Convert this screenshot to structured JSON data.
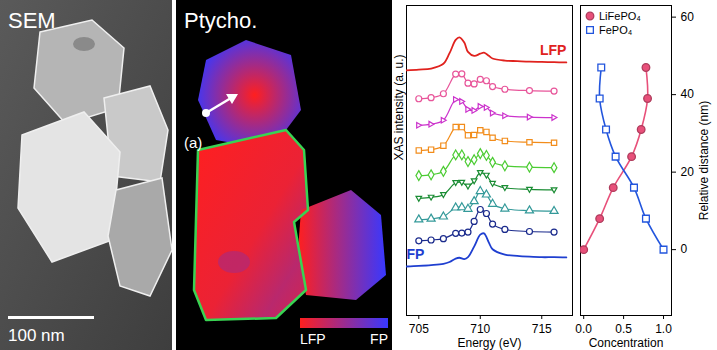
{
  "images": [
    {
      "title": "SEM",
      "scale_bar": "100 nm"
    },
    {
      "title": "Ptycho.",
      "annotation": "(a)",
      "colorbar": {
        "labels": [
          "LFP",
          "FP"
        ],
        "colors": [
          "#ff1f1f",
          "#3838ff"
        ]
      }
    }
  ],
  "chart_data": [
    {
      "type": "line",
      "xlabel": "Energy (eV)",
      "ylabel": "XAS intensity (a. u.)",
      "xlim": [
        704,
        717.5
      ],
      "xticks": [
        705,
        710,
        715
      ],
      "ylim": [
        -1.3,
        10.4
      ],
      "tick_labels": "x",
      "grid": false,
      "series": [
        {
          "name": "LFP",
          "color": "#e0221e",
          "x": [
            704,
            705,
            706,
            707,
            707.5,
            708,
            708.3,
            708.7,
            709,
            709.5,
            710,
            710.3,
            710.7,
            711,
            712,
            713,
            714,
            715,
            716,
            717
          ],
          "values": [
            7.95,
            7.98,
            8.02,
            8.2,
            8.6,
            9.1,
            9.2,
            9.0,
            8.65,
            8.5,
            8.58,
            8.62,
            8.5,
            8.4,
            8.32,
            8.3,
            8.28,
            8.27,
            8.26,
            8.25
          ]
        },
        {
          "color": "#e8559a",
          "marker": "circle",
          "x": [
            705,
            706,
            707,
            708,
            708.5,
            709,
            709.5,
            710,
            710.5,
            711,
            712,
            714,
            716
          ],
          "values": [
            6.88,
            6.92,
            7.07,
            7.81,
            7.82,
            7.47,
            7.44,
            7.61,
            7.56,
            7.34,
            7.24,
            7.19,
            7.17
          ]
        },
        {
          "color": "#cc33cc",
          "marker": "triangle-right",
          "x": [
            705,
            706,
            707,
            708,
            708.5,
            709,
            709.5,
            710,
            710.5,
            711,
            712,
            714,
            716
          ],
          "values": [
            5.88,
            5.92,
            6.07,
            6.85,
            6.78,
            6.48,
            6.44,
            6.59,
            6.55,
            6.34,
            6.24,
            6.19,
            6.17
          ]
        },
        {
          "color": "#f28c1a",
          "marker": "square",
          "x": [
            705,
            706,
            707,
            708,
            708.5,
            709,
            709.5,
            710,
            710.5,
            711,
            712,
            714,
            716
          ],
          "values": [
            4.93,
            4.96,
            5.11,
            5.81,
            5.81,
            5.5,
            5.51,
            5.69,
            5.63,
            5.41,
            5.29,
            5.24,
            5.22
          ]
        },
        {
          "color": "#4ccc33",
          "marker": "diamond",
          "x": [
            705,
            706,
            707,
            708,
            708.5,
            709,
            709.5,
            710,
            710.5,
            711,
            712,
            714,
            716
          ],
          "values": [
            3.98,
            4.01,
            4.14,
            4.76,
            4.76,
            4.51,
            4.58,
            4.81,
            4.74,
            4.48,
            4.35,
            4.3,
            4.28
          ]
        },
        {
          "color": "#1a8c33",
          "marker": "triangle-down",
          "x": [
            705,
            706,
            707,
            708,
            708.5,
            709,
            709.5,
            710,
            710.5,
            711,
            712,
            714,
            716
          ],
          "values": [
            3.12,
            3.16,
            3.26,
            3.71,
            3.72,
            3.58,
            3.78,
            4.09,
            3.99,
            3.68,
            3.52,
            3.46,
            3.44
          ]
        },
        {
          "color": "#339999",
          "marker": "triangle",
          "x": [
            705,
            706,
            707,
            708,
            708.5,
            709,
            709.5,
            710,
            710.5,
            711,
            712,
            714,
            716
          ],
          "values": [
            2.32,
            2.35,
            2.43,
            2.77,
            2.78,
            2.72,
            3.01,
            3.39,
            3.26,
            2.91,
            2.73,
            2.66,
            2.64
          ]
        },
        {
          "color": "#1a2a8c",
          "marker": "circle",
          "x": [
            705,
            706,
            707,
            708,
            708.5,
            709,
            709.5,
            710,
            710.5,
            711,
            712,
            714,
            716
          ],
          "values": [
            1.52,
            1.55,
            1.6,
            1.8,
            1.81,
            1.85,
            2.25,
            2.7,
            2.55,
            2.15,
            1.95,
            1.87,
            1.85
          ]
        },
        {
          "name": "FP",
          "color": "#1f3fd0",
          "x": [
            704,
            705,
            706,
            707,
            707.5,
            708,
            708.3,
            708.7,
            709,
            709.5,
            710,
            710.3,
            710.7,
            711,
            712,
            713,
            714,
            715,
            716,
            717
          ],
          "values": [
            0.55,
            0.57,
            0.6,
            0.65,
            0.72,
            0.85,
            0.88,
            0.83,
            0.9,
            1.3,
            1.75,
            1.8,
            1.45,
            1.2,
            1.0,
            0.95,
            0.92,
            0.9,
            0.9,
            0.89
          ]
        }
      ]
    },
    {
      "type": "line",
      "xlabel": "Concentration",
      "ylabel": "Relative distance (nm)",
      "xlim": [
        -0.04,
        1.1
      ],
      "xticks": [
        0,
        0.5,
        1
      ],
      "ylim": [
        -17,
        63
      ],
      "yticks": [
        0,
        20,
        40,
        60
      ],
      "legend": "top-left",
      "grid": false,
      "series": [
        {
          "name": "LiFePO₄",
          "color": "#e8507a",
          "marker": "circle",
          "x": [
            0,
            0.2,
            0.37,
            0.6,
            0.72,
            0.8,
            0.78
          ],
          "y": [
            0,
            8,
            16,
            24,
            31,
            39,
            47
          ]
        },
        {
          "name": "FePO₄",
          "color": "#2255dd",
          "marker": "square",
          "x": [
            1,
            0.78,
            0.63,
            0.4,
            0.28,
            0.2,
            0.22
          ],
          "y": [
            0,
            8,
            16,
            24,
            31,
            39,
            47
          ]
        }
      ]
    }
  ]
}
